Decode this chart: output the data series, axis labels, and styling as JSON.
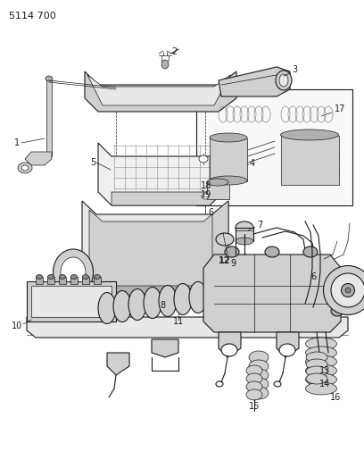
{
  "part_number_label": "5114 700",
  "background_color": "#ffffff",
  "figsize": [
    4.08,
    5.33
  ],
  "dpi": 100,
  "lc": "#1a1a1a",
  "gray1": "#e8e8e8",
  "gray2": "#d0d0d0",
  "gray3": "#b0b0b0",
  "gray4": "#888888",
  "gray5": "#555555"
}
